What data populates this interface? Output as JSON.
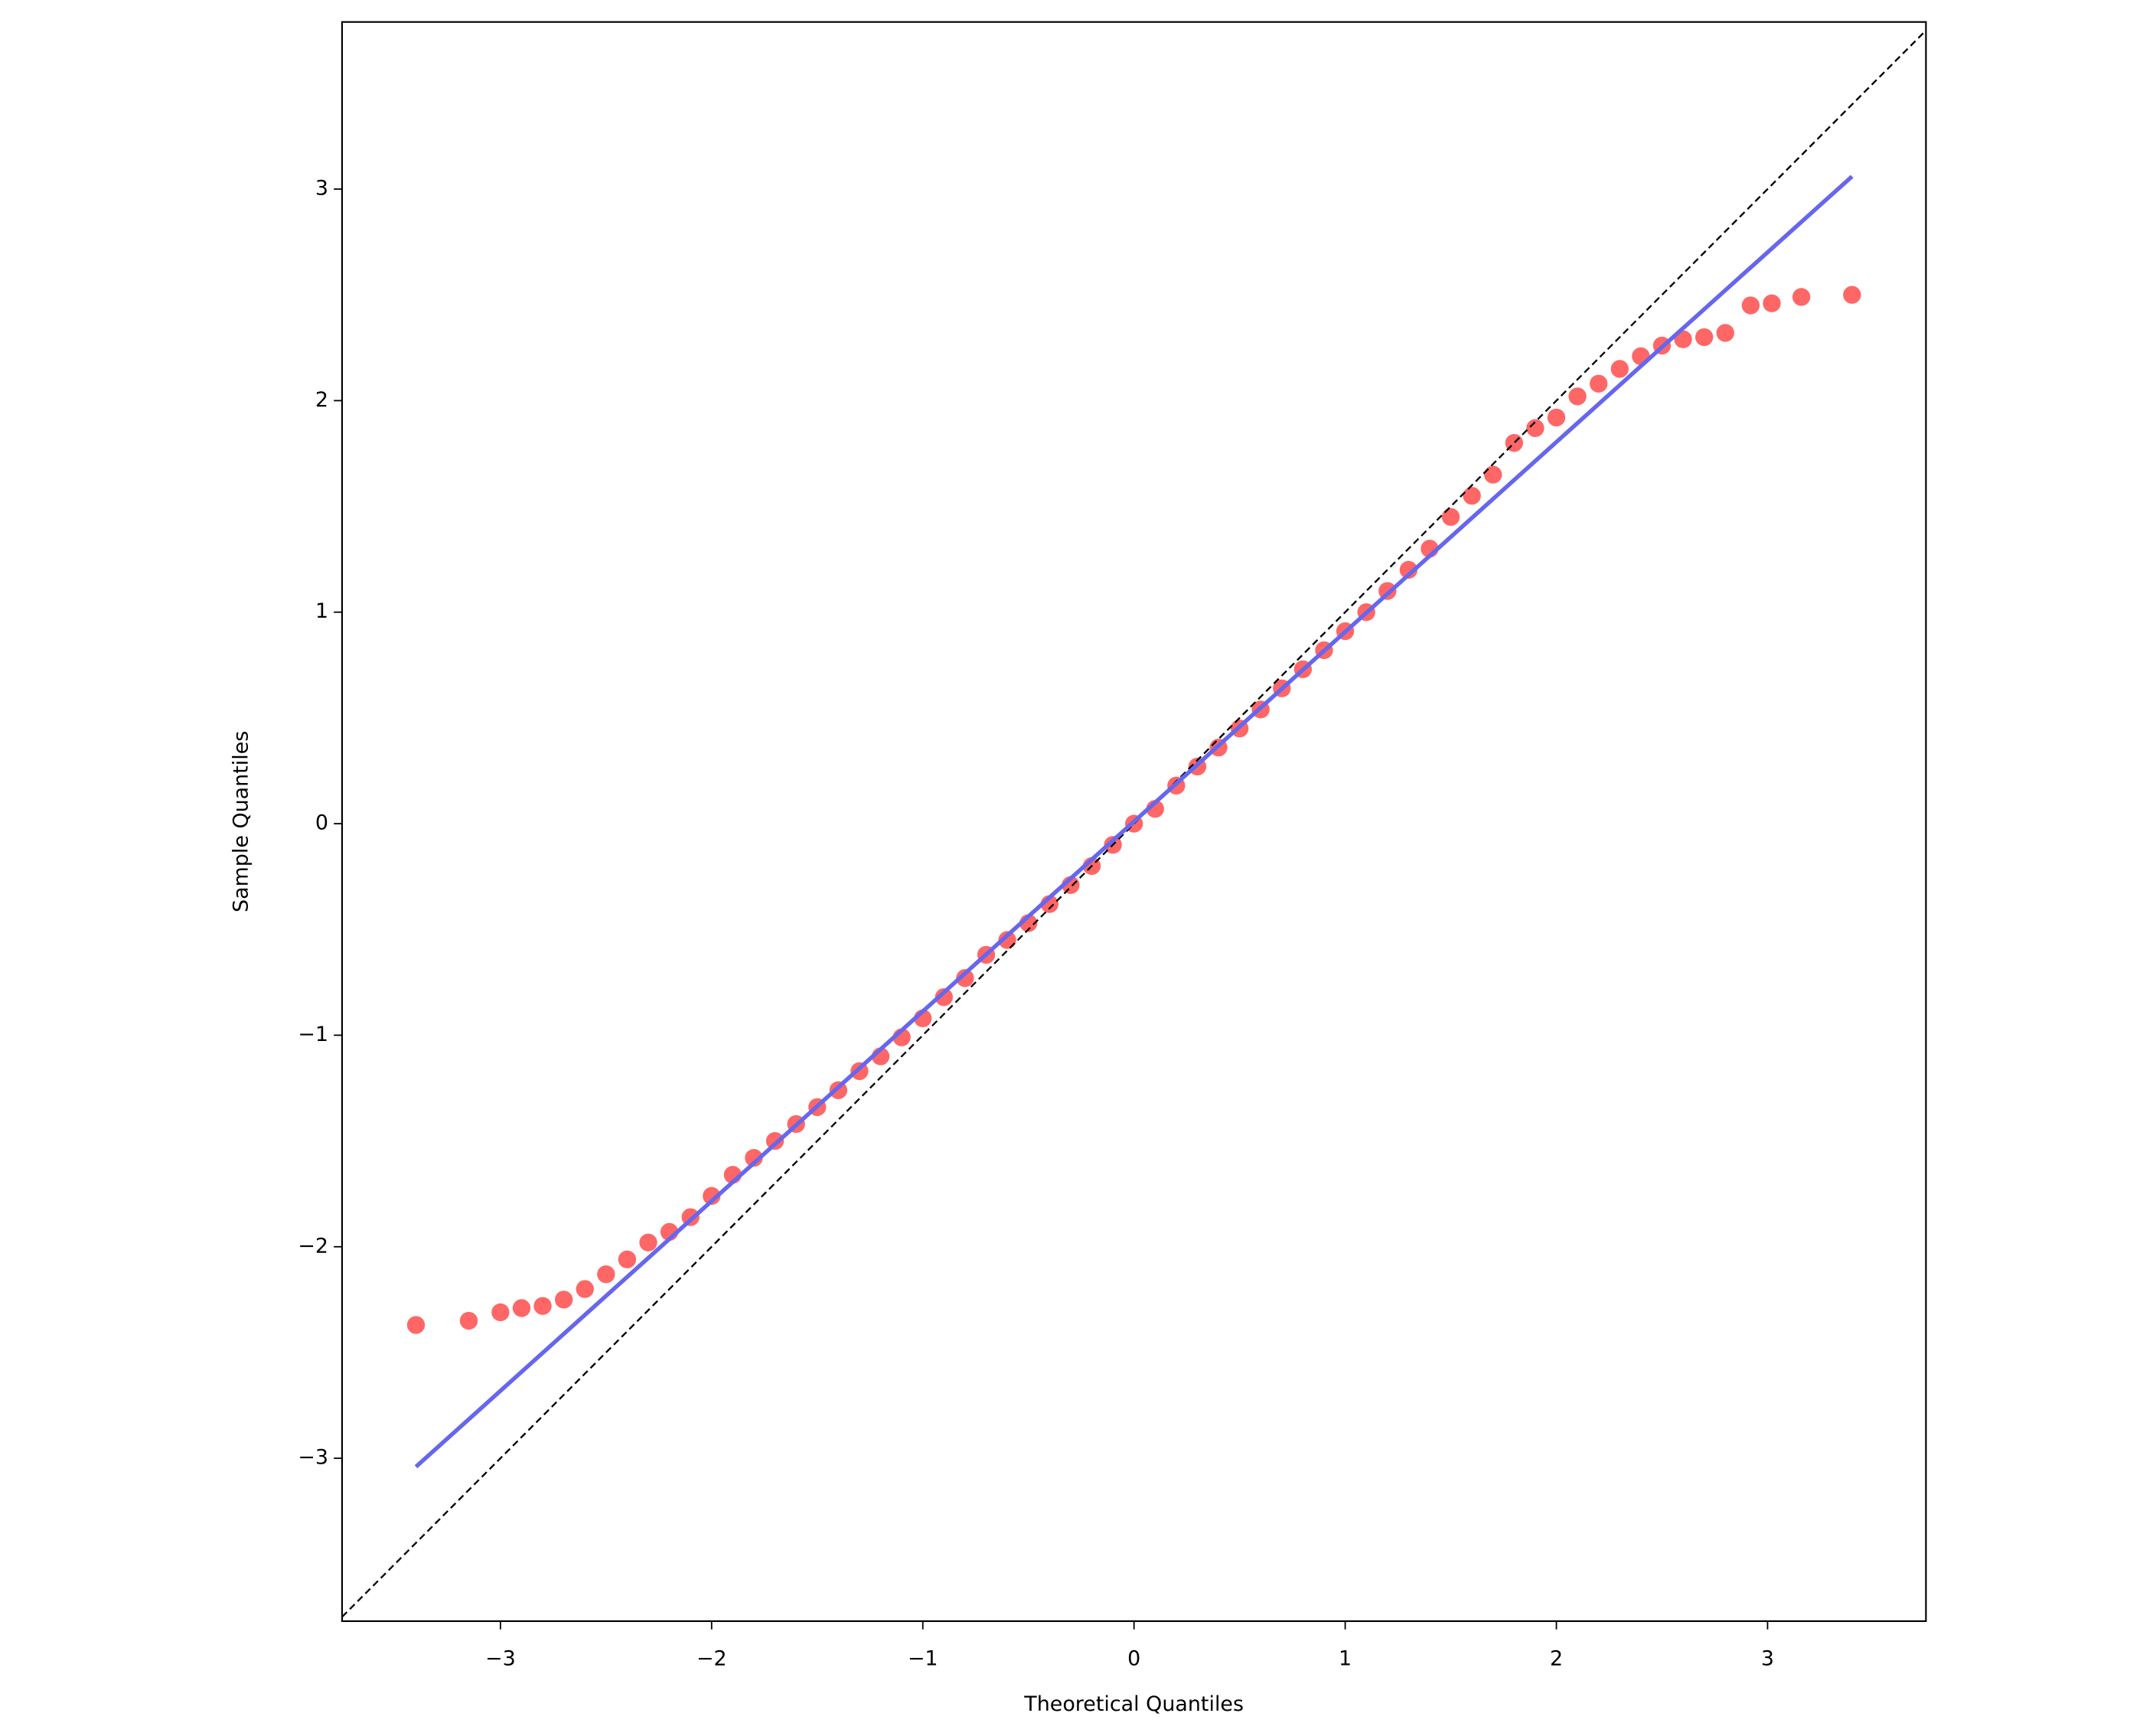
{
  "chart_data": {
    "type": "scatter",
    "xlabel": "Theoretical Quantiles",
    "ylabel": "Sample Quantiles",
    "xlim": [
      -3.75,
      3.75
    ],
    "ylim": [
      -3.77,
      3.79
    ],
    "xticks": [
      {
        "value": -3,
        "label": "−3"
      },
      {
        "value": -2,
        "label": "−2"
      },
      {
        "value": -1,
        "label": "−1"
      },
      0,
      1,
      2,
      3
    ],
    "yticks": [
      {
        "value": -3,
        "label": "−3"
      },
      {
        "value": -2,
        "label": "−2"
      },
      {
        "value": -1,
        "label": "−1"
      },
      0,
      1,
      2,
      3
    ],
    "color": "#ff6666",
    "x": [
      -3.4,
      -3.15,
      -3.0,
      -2.9,
      -2.8,
      -2.7,
      -2.6,
      -2.5,
      -2.4,
      -2.3,
      -2.2,
      -2.1,
      -2.0,
      -1.9,
      -1.8,
      -1.7,
      -1.6,
      -1.5,
      -1.4,
      -1.3,
      -1.2,
      -1.1,
      -1.0,
      -0.9,
      -0.8,
      -0.7,
      -0.6,
      -0.5,
      -0.4,
      -0.3,
      -0.2,
      -0.1,
      0,
      0.1,
      0.2,
      0.3,
      0.4,
      0.5,
      0.6,
      0.7,
      0.8,
      0.9,
      1.0,
      1.1,
      1.2,
      1.3,
      1.4,
      1.5,
      1.6,
      1.7,
      1.8,
      1.9,
      2.0,
      2.1,
      2.2,
      2.3,
      2.4,
      2.5,
      2.6,
      2.7,
      2.8,
      2.92,
      3.02,
      3.16,
      3.4
    ],
    "y": [
      -2.37,
      -2.35,
      -2.31,
      -2.29,
      -2.28,
      -2.25,
      -2.2,
      -2.13,
      -2.06,
      -1.98,
      -1.93,
      -1.86,
      -1.76,
      -1.66,
      -1.58,
      -1.5,
      -1.42,
      -1.34,
      -1.26,
      -1.17,
      -1.1,
      -1.01,
      -0.92,
      -0.82,
      -0.73,
      -0.62,
      -0.55,
      -0.47,
      -0.38,
      -0.29,
      -0.2,
      -0.1,
      0,
      0.07,
      0.18,
      0.27,
      0.36,
      0.45,
      0.54,
      0.64,
      0.73,
      0.82,
      0.91,
      1.0,
      1.1,
      1.2,
      1.3,
      1.45,
      1.55,
      1.65,
      1.8,
      1.87,
      1.92,
      2.02,
      2.08,
      2.15,
      2.21,
      2.26,
      2.29,
      2.3,
      2.32,
      2.45,
      2.46,
      2.49,
      2.5
    ],
    "fit_line": {
      "x": [
        -3.4,
        3.4
      ],
      "y": [
        -3.04,
        3.06
      ],
      "color": "#6666ee"
    },
    "reference_line": {
      "x": [
        -3.75,
        3.75
      ],
      "y": [
        -3.75,
        3.75
      ],
      "color": "#000000",
      "dashed": true
    }
  }
}
